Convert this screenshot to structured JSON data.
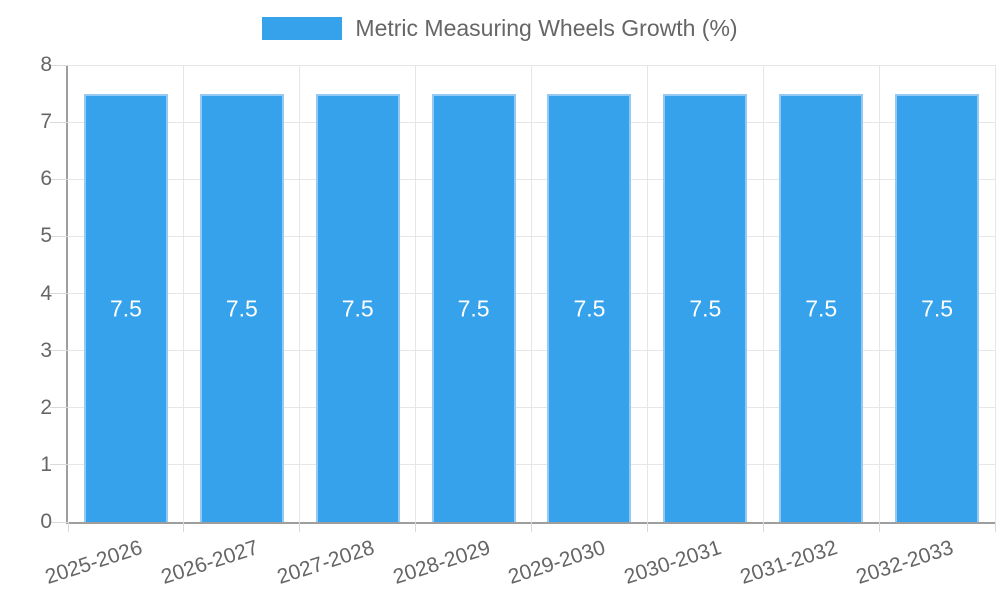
{
  "chart_data": {
    "type": "bar",
    "title": "Metric Measuring Wheels Growth (%)",
    "legend": {
      "position": "top",
      "label": "Metric Measuring Wheels Growth (%)",
      "swatch_color": "#36A2EB"
    },
    "categories": [
      "2025-2026",
      "2026-2027",
      "2027-2028",
      "2028-2029",
      "2029-2030",
      "2030-2031",
      "2031-2032",
      "2032-2033"
    ],
    "values": [
      7.5,
      7.5,
      7.5,
      7.5,
      7.5,
      7.5,
      7.5,
      7.5
    ],
    "value_labels": [
      "7.5",
      "7.5",
      "7.5",
      "7.5",
      "7.5",
      "7.5",
      "7.5",
      "7.5"
    ],
    "xlabel": "",
    "ylabel": "",
    "ylim": [
      0,
      8
    ],
    "ytick_step": 1,
    "ytick_labels": [
      "0",
      "1",
      "2",
      "3",
      "4",
      "5",
      "6",
      "7",
      "8"
    ],
    "grid": true,
    "colors": {
      "bar_fill": "#36A2EB",
      "bar_border": "#93C9F3",
      "value_label": "#ffffff",
      "axis_text": "#666666",
      "gridline": "#e6e6e6",
      "axis_line": "#9e9e9e"
    }
  }
}
